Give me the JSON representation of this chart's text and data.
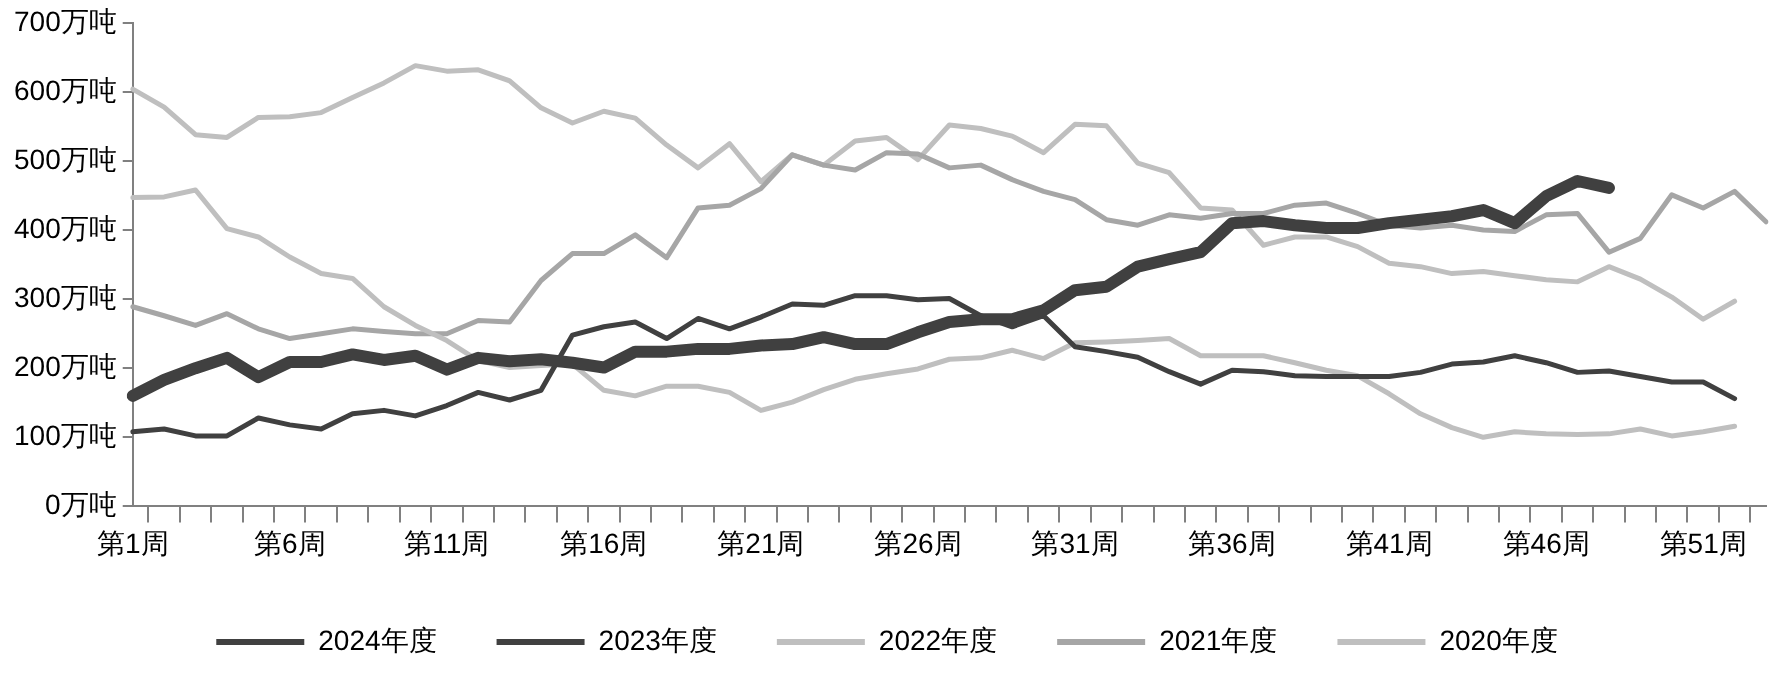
{
  "chart_data": {
    "type": "line",
    "categories": [
      "第1周",
      null,
      null,
      null,
      null,
      "第6周",
      null,
      null,
      null,
      null,
      "第11周",
      null,
      null,
      null,
      null,
      "第16周",
      null,
      null,
      null,
      null,
      "第21周",
      null,
      null,
      null,
      null,
      "第26周",
      null,
      null,
      null,
      null,
      "第31周",
      null,
      null,
      null,
      null,
      "第36周",
      null,
      null,
      null,
      null,
      "第41周",
      null,
      null,
      null,
      null,
      "第46周",
      null,
      null,
      null,
      null,
      "第51周",
      null,
      null
    ],
    "series": [
      {
        "name": "2024年度",
        "color": "#404040",
        "values": [
          160,
          183,
          200,
          215,
          187,
          209,
          209,
          220,
          212,
          218,
          198,
          215,
          210,
          213,
          208,
          201,
          224,
          224,
          228,
          228,
          233,
          235,
          245,
          235,
          235,
          252,
          267,
          271,
          271,
          284,
          313,
          318,
          347,
          358,
          368,
          410,
          413,
          407,
          403,
          403,
          410,
          415,
          420,
          429,
          410,
          449,
          471,
          461,
          null,
          null,
          null,
          null,
          null
        ]
      },
      {
        "name": "2023年度",
        "color": "#404040",
        "values": [
          108,
          112,
          102,
          102,
          128,
          118,
          112,
          134,
          139,
          131,
          146,
          165,
          154,
          168,
          248,
          260,
          267,
          243,
          272,
          257,
          274,
          293,
          291,
          305,
          305,
          299,
          301,
          276,
          260,
          276,
          231,
          224,
          216,
          195,
          177,
          197,
          195,
          189,
          188,
          188,
          188,
          194,
          206,
          209,
          218,
          208,
          194,
          196,
          188,
          180,
          180,
          156,
          null
        ]
      },
      {
        "name": "2022年度",
        "color": "#bfbfbf",
        "values": [
          447,
          448,
          458,
          402,
          390,
          361,
          337,
          330,
          289,
          262,
          240,
          211,
          201,
          204,
          206,
          168,
          160,
          174,
          174,
          165,
          139,
          151,
          169,
          184,
          192,
          199,
          213,
          215,
          226,
          214,
          237,
          238,
          240,
          243,
          218,
          218,
          218,
          208,
          197,
          189,
          163,
          134,
          114,
          100,
          108,
          105,
          104,
          105,
          112,
          102,
          108,
          116,
          null
        ]
      },
      {
        "name": "2021年度",
        "color": "#a6a6a6",
        "values": [
          289,
          276,
          262,
          279,
          257,
          243,
          250,
          257,
          253,
          250,
          250,
          269,
          267,
          327,
          366,
          366,
          393,
          360,
          432,
          436,
          460,
          509,
          494,
          487,
          512,
          510,
          490,
          494,
          473,
          456,
          444,
          415,
          407,
          422,
          417,
          424,
          424,
          436,
          439,
          424,
          407,
          403,
          407,
          400,
          398,
          422,
          424,
          368,
          388,
          451,
          432,
          456,
          412
        ]
      },
      {
        "name": "2020年度",
        "color": "#bfbfbf",
        "values": [
          604,
          578,
          538,
          534,
          563,
          564,
          570,
          592,
          613,
          638,
          630,
          632,
          616,
          577,
          555,
          572,
          562,
          523,
          490,
          525,
          470,
          509,
          494,
          529,
          534,
          502,
          552,
          547,
          536,
          512,
          553,
          551,
          497,
          483,
          432,
          429,
          378,
          390,
          390,
          376,
          352,
          347,
          337,
          340,
          334,
          328,
          325,
          347,
          329,
          303,
          271,
          297,
          null
        ]
      }
    ],
    "ylim": [
      0,
      700
    ],
    "yticks": [
      {
        "value": 0,
        "label": "0万吨"
      },
      {
        "value": 100,
        "label": "100万吨"
      },
      {
        "value": 200,
        "label": "200万吨"
      },
      {
        "value": 300,
        "label": "300万吨"
      },
      {
        "value": 400,
        "label": "400万吨"
      },
      {
        "value": 500,
        "label": "500万吨"
      },
      {
        "value": 600,
        "label": "600万吨"
      },
      {
        "value": 700,
        "label": "700万吨"
      }
    ],
    "legend": "bottom",
    "grid": false,
    "marker": "none",
    "line_style": "solid"
  }
}
